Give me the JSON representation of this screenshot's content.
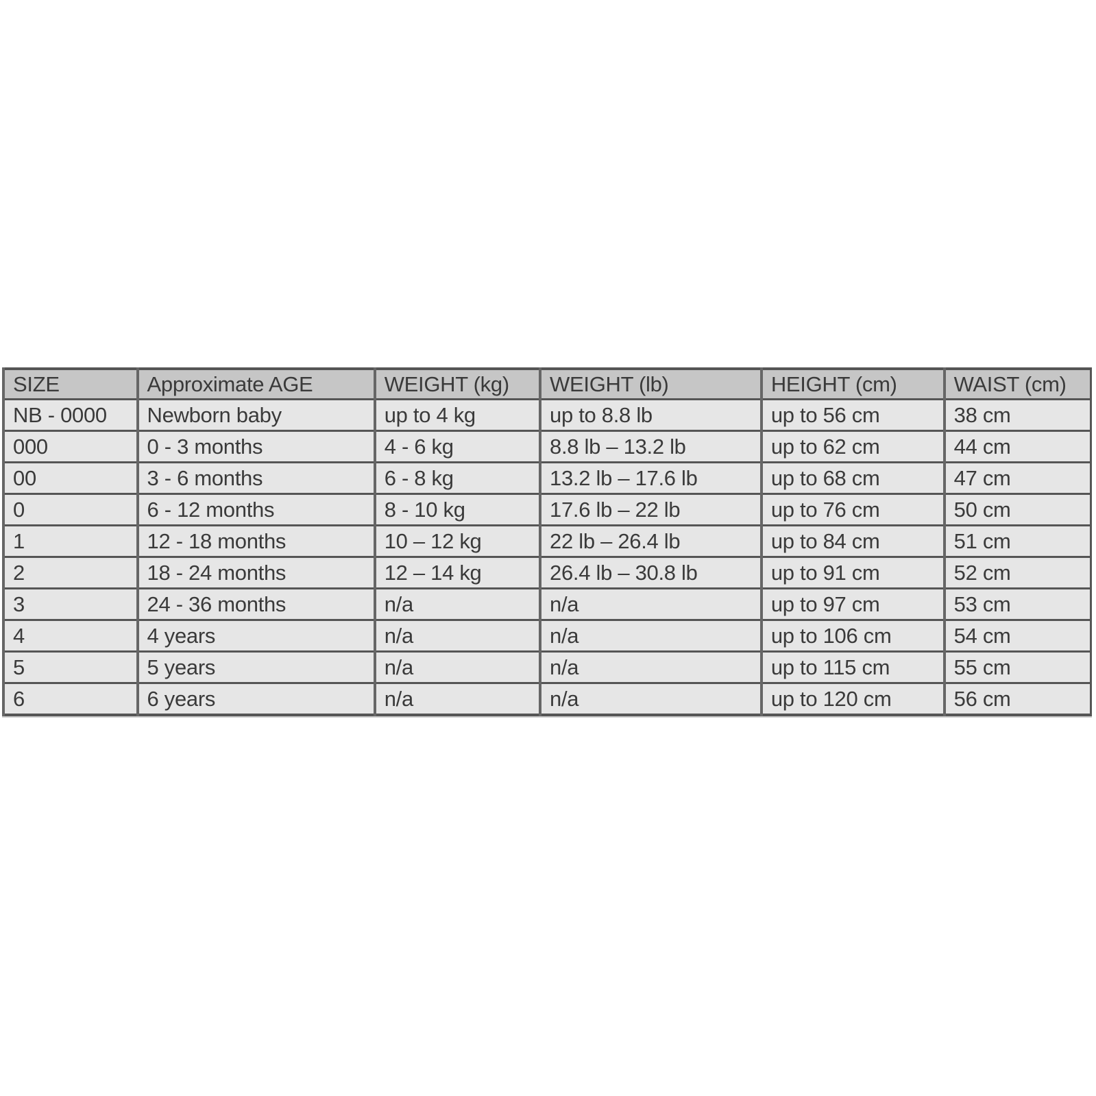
{
  "table": {
    "headers": [
      "SIZE",
      "Approximate AGE",
      "WEIGHT (kg)",
      "WEIGHT (lb)",
      "HEIGHT (cm)",
      "WAIST (cm)"
    ],
    "rows": [
      [
        "NB - 0000",
        "Newborn baby",
        "up to 4 kg",
        "up to 8.8 lb",
        "up to 56 cm",
        "38 cm"
      ],
      [
        "000",
        "0 - 3 months",
        "4 - 6 kg",
        "8.8 lb – 13.2 lb",
        "up to 62 cm",
        "44 cm"
      ],
      [
        "00",
        "3 - 6 months",
        "6 - 8 kg",
        "13.2 lb – 17.6 lb",
        "up to 68 cm",
        "47 cm"
      ],
      [
        "0",
        "6 - 12 months",
        "8 - 10 kg",
        "17.6 lb – 22 lb",
        "up to 76 cm",
        "50 cm"
      ],
      [
        "1",
        "12 - 18 months",
        "10 – 12 kg",
        "22 lb – 26.4 lb",
        "up to 84 cm",
        "51 cm"
      ],
      [
        "2",
        "18 - 24 months",
        "12 – 14 kg",
        "26.4 lb – 30.8 lb",
        "up to 91 cm",
        "52 cm"
      ],
      [
        "3",
        "24 - 36 months",
        "n/a",
        "n/a",
        "up to 97 cm",
        "53 cm"
      ],
      [
        "4",
        "4 years",
        "n/a",
        "n/a",
        "up to 106 cm",
        "54 cm"
      ],
      [
        "5",
        "5 years",
        "n/a",
        "n/a",
        "up to 115 cm",
        "55 cm"
      ],
      [
        "6",
        "6 years",
        "n/a",
        "n/a",
        "up to 120 cm",
        "56 cm"
      ]
    ]
  },
  "colors": {
    "header_bg": "#c6c6c6",
    "cell_bg": "#e6e6e6",
    "border": "#555555",
    "text": "#3a3a3a"
  }
}
